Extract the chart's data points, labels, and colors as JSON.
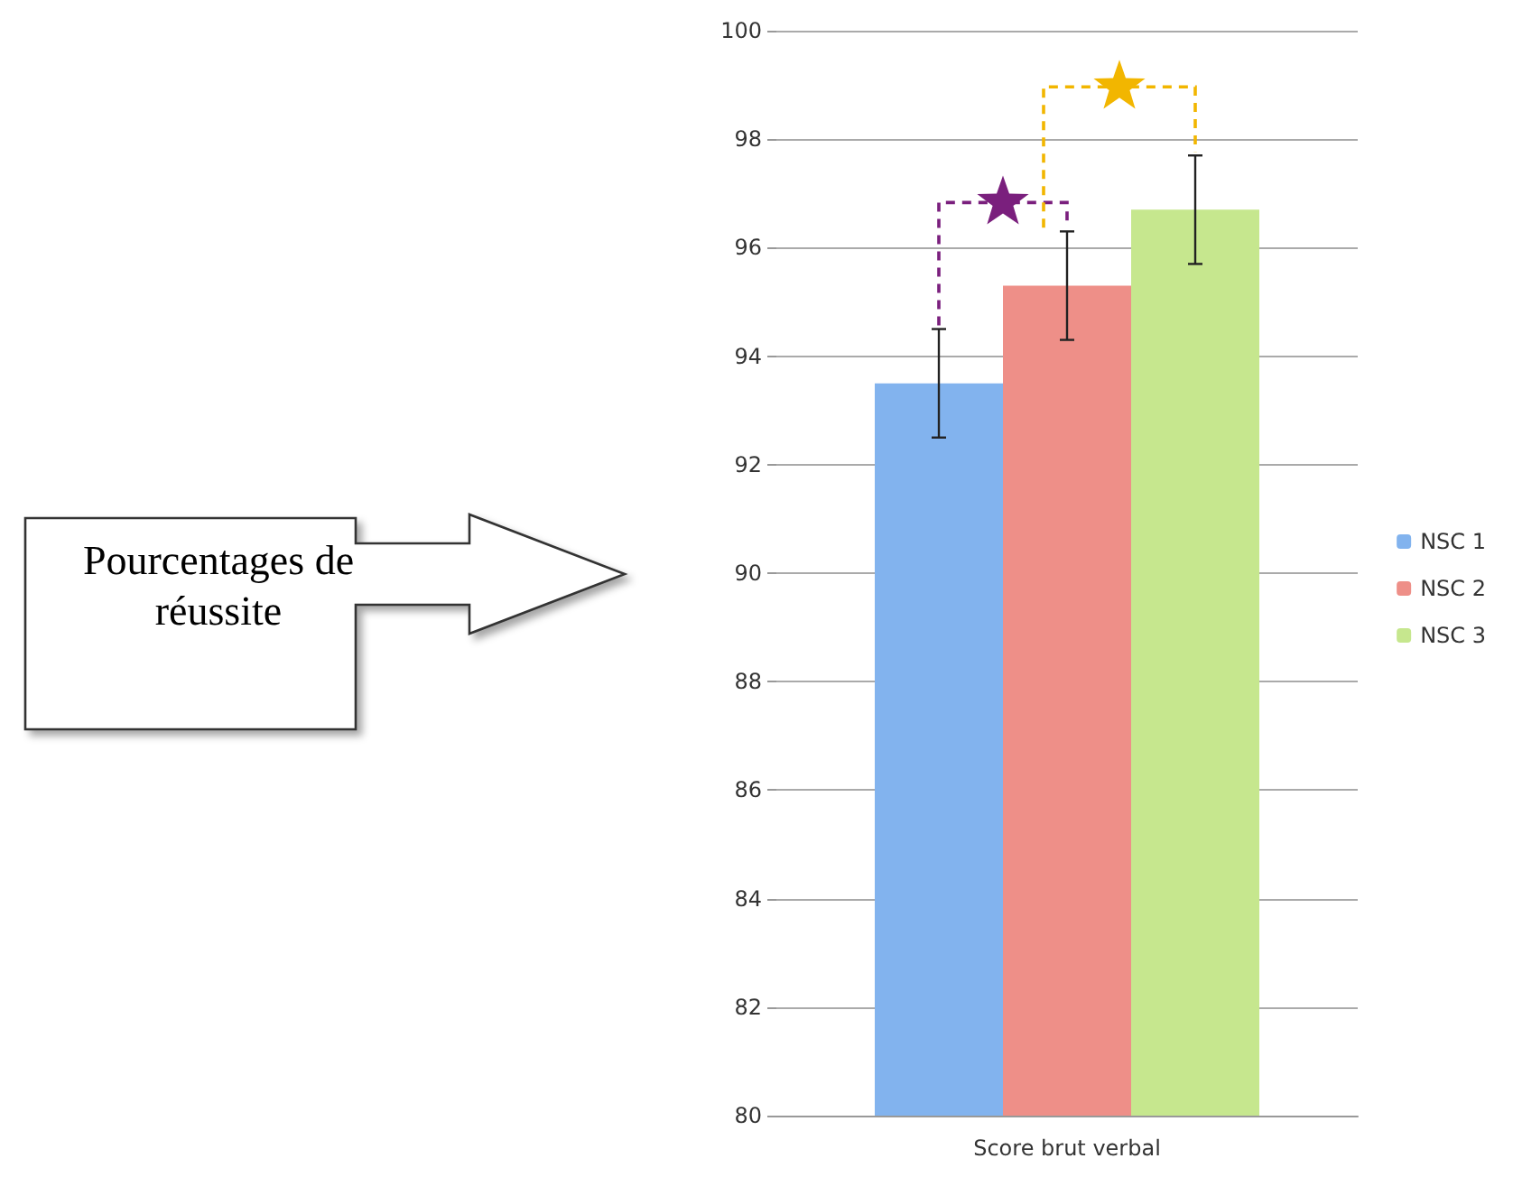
{
  "chart_data": {
    "type": "bar",
    "annotations": [
      "Pourcentages de réussite"
    ],
    "categories": [
      "Score brut verbal"
    ],
    "series": [
      {
        "name": "NSC 1",
        "color": "#82b3ee",
        "values": [
          93.5
        ],
        "errors": [
          1
        ]
      },
      {
        "name": "NSC 2",
        "color": "#ee8f88",
        "values": [
          95.3
        ],
        "errors": [
          1
        ]
      },
      {
        "name": "NSC 3",
        "color": "#c6e78e",
        "values": [
          96.7
        ],
        "errors": [
          1
        ]
      }
    ],
    "ylim": [
      80,
      100
    ],
    "yticks": [
      80,
      82,
      84,
      86,
      88,
      90,
      92,
      94,
      96,
      98,
      100
    ],
    "grid": "y",
    "legend": "right"
  }
}
